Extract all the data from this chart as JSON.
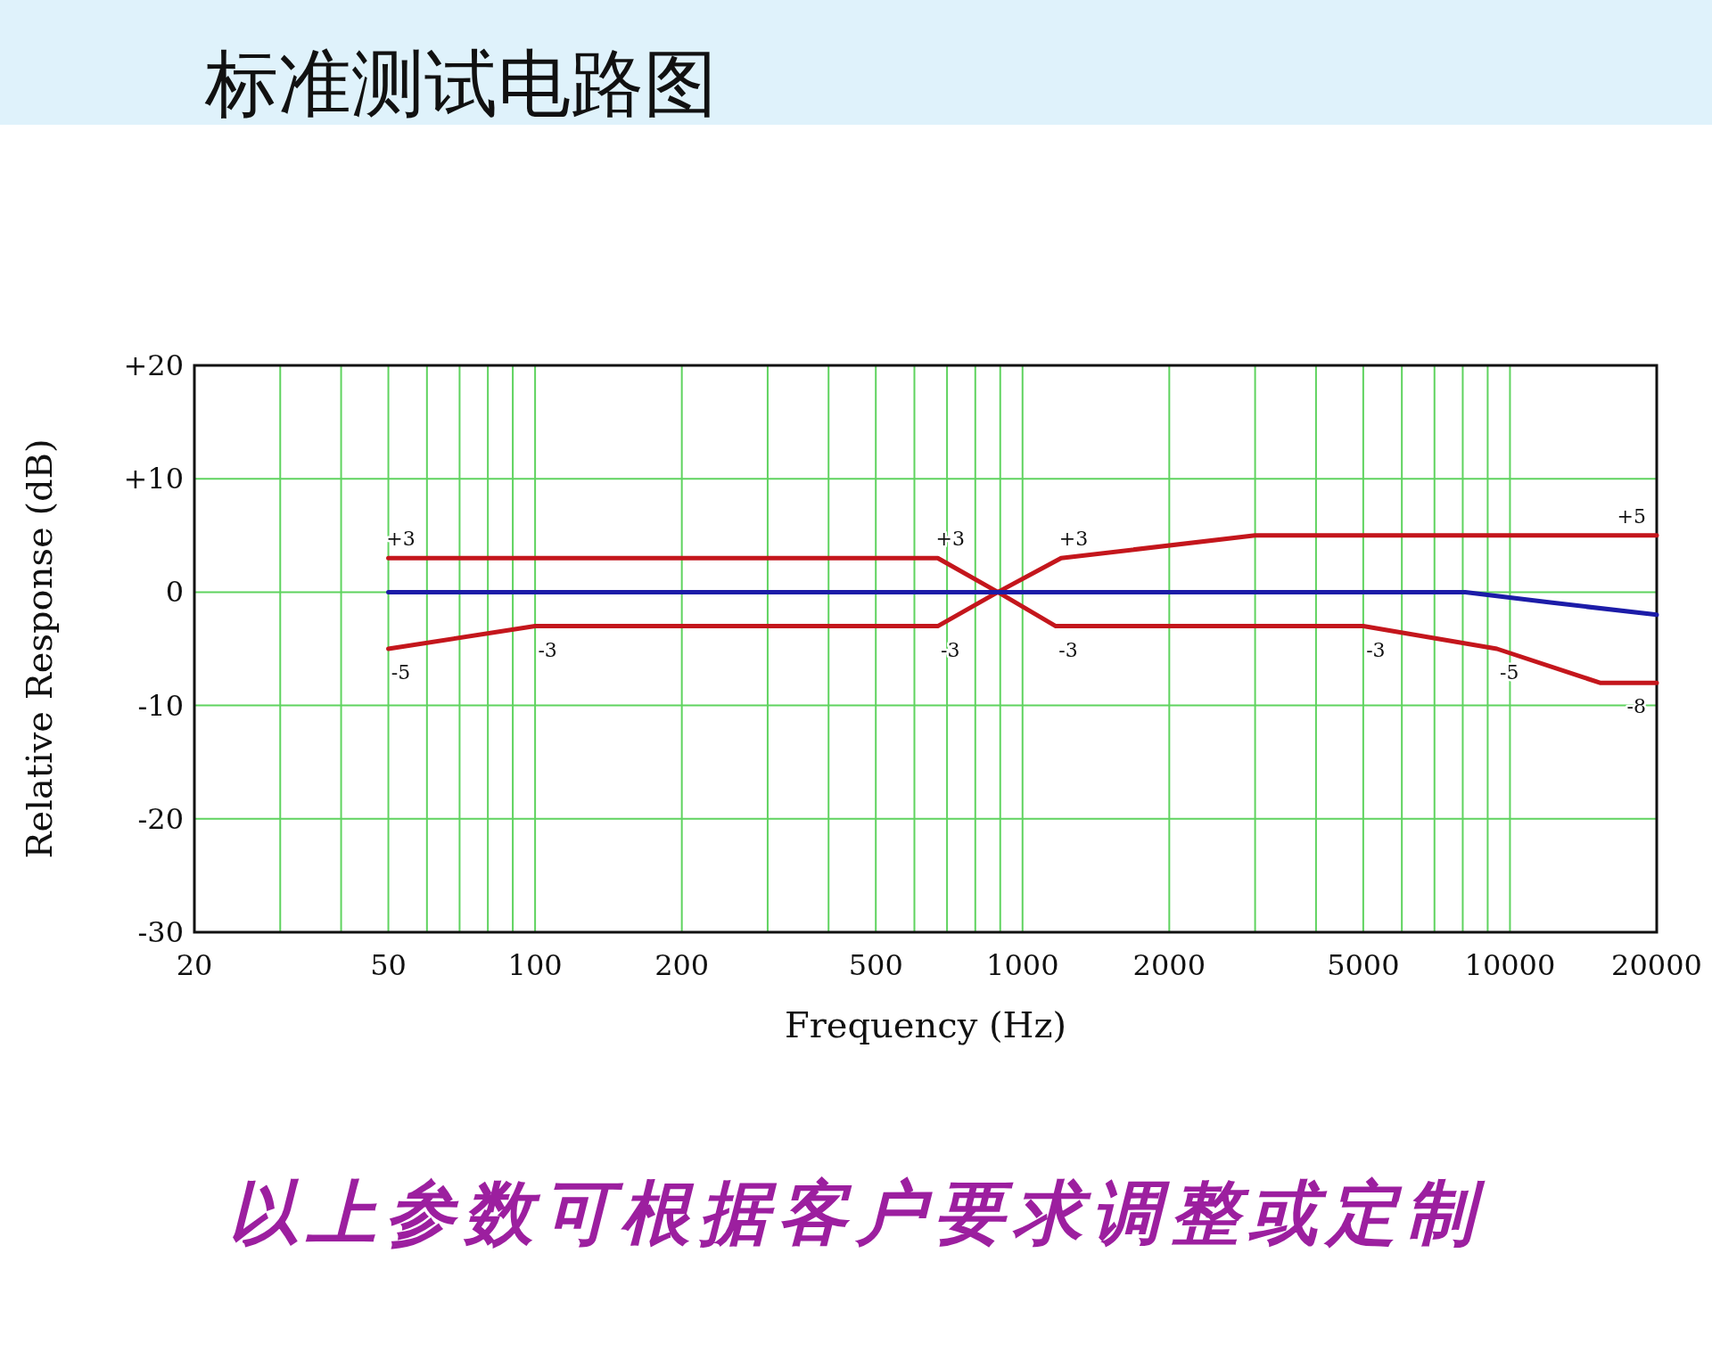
{
  "chart_data": {
    "type": "line",
    "title": "标准测试电路图",
    "xlabel": "Frequency (Hz)",
    "ylabel": "Relative Response (dB)",
    "log": "x",
    "grid": true,
    "marker": "none",
    "line_style": "solid",
    "xlim": [
      20,
      20000
    ],
    "xticks": [
      20,
      50,
      100,
      200,
      500,
      1000,
      2000,
      5000,
      10000,
      20000
    ],
    "ylim": [
      -30,
      20
    ],
    "yticks": [
      {
        "value": 20,
        "label": "+20"
      },
      {
        "value": 10,
        "label": "+10"
      },
      0,
      -10,
      -20,
      -30
    ],
    "series": [
      {
        "color": "#c4161c",
        "x": [
          50,
          670,
          890,
          1200,
          3000,
          20000
        ],
        "values": [
          3,
          3,
          0,
          3,
          5,
          5
        ]
      },
      {
        "color": "#c4161c",
        "x": [
          50,
          100,
          670,
          890,
          1170,
          5000,
          9400,
          15300,
          20000
        ],
        "values": [
          -5,
          -3,
          -3,
          0,
          -3,
          -3,
          -5,
          -8,
          -8
        ]
      },
      {
        "color": "#1c1ca8",
        "x": [
          50,
          8100,
          12000,
          20000
        ],
        "values": [
          0,
          0,
          -0.9,
          -2
        ]
      }
    ],
    "annotations": [
      {
        "text": "+3",
        "x": 50,
        "y": 3
      },
      {
        "text": "+3",
        "x": 670,
        "y": 3
      },
      {
        "text": "+3",
        "x": 1200,
        "y": 3
      },
      {
        "text": "+5",
        "x": 20000,
        "y": 5
      },
      {
        "text": "-5",
        "x": 50,
        "y": -5
      },
      {
        "text": "-3",
        "x": 100,
        "y": -3
      },
      {
        "text": "-3",
        "x": 670,
        "y": -3
      },
      {
        "text": "-3",
        "x": 1170,
        "y": -3
      },
      {
        "text": "-3",
        "x": 5000,
        "y": -3
      },
      {
        "text": "-5",
        "x": 9400,
        "y": -5
      },
      {
        "text": "-8",
        "x": 20000,
        "y": -8
      },
      "以上参数可根据客户要求调整或定制"
    ]
  }
}
